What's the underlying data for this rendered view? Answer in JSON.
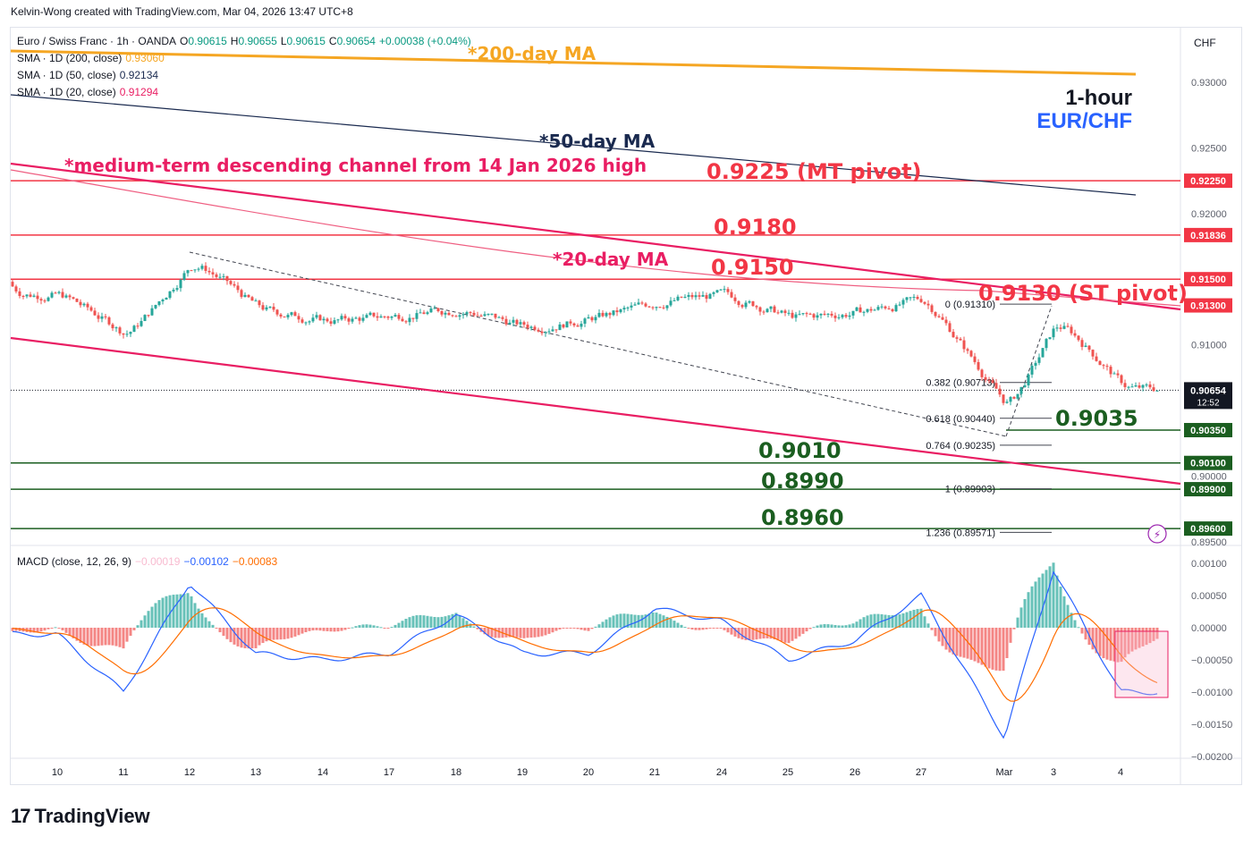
{
  "credit": "Kelvin-Wong created with TradingView.com, Mar 04, 2026 13:47 UTC+8",
  "legend": {
    "symbol": "Euro / Swiss Franc · 1h · OANDA",
    "o_label": "O",
    "o": "0.90615",
    "h_label": "H",
    "h": "0.90655",
    "l_label": "L",
    "l": "0.90615",
    "c_label": "C",
    "c": "0.90654",
    "change": "+0.00038 (+0.04%)",
    "sma200_label": "SMA · 1D (200, close)",
    "sma200": "0.93060",
    "sma50_label": "SMA · 1D (50, close)",
    "sma50": "0.92134",
    "sma20_label": "SMA · 1D (20, close)",
    "sma20": "0.91294"
  },
  "macd_legend": {
    "label": "MACD (close, 12, 26, 9)",
    "hist": "−0.00019",
    "macd": "−0.00102",
    "signal": "−0.00083"
  },
  "currency": "CHF",
  "chart_title": {
    "line1": "1-hour",
    "line2": "EUR/CHF"
  },
  "annotations": {
    "ma200": "*200-day MA",
    "ma50": "*50-day MA",
    "ma20": "*20-day MA",
    "channel": "*medium-term descending channel from 14 Jan 2026 high",
    "mt_pivot": "0.9225 (MT pivot)",
    "r_9180": "0.9180",
    "r_9150": "0.9150",
    "st_pivot": "0.9130 (ST pivot)",
    "s_9035": "0.9035",
    "s_9010": "0.9010",
    "s_8990": "0.8990",
    "s_8960": "0.8960"
  },
  "fib": [
    {
      "label": "0 (0.91310)",
      "value": 0.9131
    },
    {
      "label": "0.382 (0.90713)",
      "value": 0.90713
    },
    {
      "label": "0.618 (0.90440)",
      "value": 0.9044
    },
    {
      "label": "0.764 (0.90235)",
      "value": 0.90235
    },
    {
      "label": "1 (0.89903)",
      "value": 0.89903
    },
    {
      "label": "1.236 (0.89571)",
      "value": 0.89571
    }
  ],
  "price_axis": {
    "ticks": [
      "0.93000",
      "0.92500",
      "0.92000",
      "0.91000",
      "0.90000",
      "0.89500"
    ],
    "tick_values": [
      0.93,
      0.925,
      0.92,
      0.91,
      0.9,
      0.895
    ],
    "badges": [
      {
        "label": "0.92250",
        "value": 0.9225,
        "color": "#f23645"
      },
      {
        "label": "0.91836",
        "value": 0.91836,
        "color": "#f23645"
      },
      {
        "label": "0.91500",
        "value": 0.915,
        "color": "#f23645"
      },
      {
        "label": "0.91300",
        "value": 0.913,
        "color": "#f23645"
      },
      {
        "label": "0.90350",
        "value": 0.9035,
        "color": "#1b5e20"
      },
      {
        "label": "0.90100",
        "value": 0.901,
        "color": "#1b5e20"
      },
      {
        "label": "0.89900",
        "value": 0.899,
        "color": "#1b5e20"
      },
      {
        "label": "0.89600",
        "value": 0.896,
        "color": "#1b5e20"
      }
    ],
    "last_price": "0.90654",
    "countdown": "12:52"
  },
  "macd_axis": {
    "ticks": [
      "0.00100",
      "0.00050",
      "0.00000",
      "−0.00050",
      "−0.00100",
      "−0.00150",
      "−0.00200"
    ],
    "tick_values": [
      0.001,
      0.0005,
      0,
      -0.0005,
      -0.001,
      -0.0015,
      -0.002
    ]
  },
  "time_axis": [
    "10",
    "11",
    "12",
    "13",
    "14",
    "17",
    "18",
    "19",
    "20",
    "21",
    "24",
    "25",
    "26",
    "27",
    "Mar",
    "3",
    "4"
  ],
  "brand": "TradingView",
  "colors": {
    "up": "#26a69a",
    "down": "#ef5350",
    "ma200": "#f5a623",
    "ma50": "#1a2a4f",
    "ma20": "#e91e63",
    "resistance": "#f23645",
    "support": "#1b5e20",
    "macd": "#2962ff",
    "signal": "#ff6d00",
    "title_blue": "#2962ff"
  },
  "chart_data": {
    "type": "line",
    "series": [
      {
        "name": "EUR/CHF 1h close (approx.)",
        "x": [
          "10",
          "11",
          "12",
          "13",
          "14",
          "17",
          "18",
          "19",
          "20",
          "21",
          "24",
          "25",
          "26",
          "27",
          "Mar",
          "3",
          "4"
        ],
        "values": [
          0.9138,
          0.9107,
          0.9165,
          0.9126,
          0.9118,
          0.9122,
          0.9127,
          0.9113,
          0.912,
          0.9133,
          0.9138,
          0.912,
          0.9125,
          0.9135,
          0.905,
          0.912,
          0.9066
        ]
      },
      {
        "name": "MACD (approx.)",
        "x": [
          "10",
          "11",
          "12",
          "13",
          "14",
          "17",
          "18",
          "19",
          "20",
          "21",
          "24",
          "25",
          "26",
          "27",
          "Mar",
          "3",
          "4"
        ],
        "values": [
          -0.0001,
          -0.001,
          0.0007,
          -0.0004,
          -0.0005,
          -0.0004,
          0.0002,
          -0.0004,
          -0.0004,
          0.0003,
          0.0001,
          -0.0005,
          -0.0002,
          0.0005,
          -0.0017,
          0.0009,
          -0.001
        ]
      }
    ],
    "ylim": [
      0.8945,
      0.9345
    ]
  }
}
